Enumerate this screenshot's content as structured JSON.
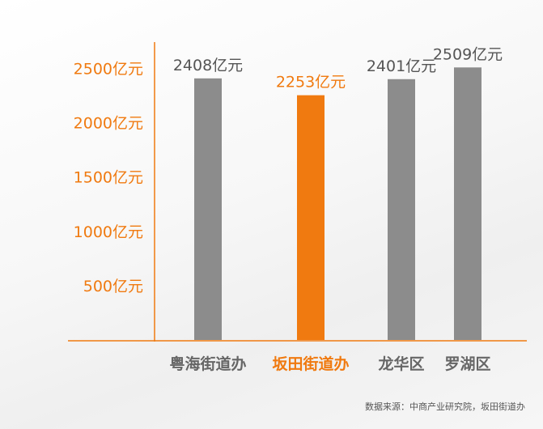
{
  "chart_data": {
    "type": "bar",
    "categories": [
      "粤海街道办",
      "坂田街道办",
      "龙华区",
      "罗湖区"
    ],
    "values": [
      2408,
      2253,
      2401,
      2509
    ],
    "data_labels": [
      "2408亿元",
      "2253亿元",
      "2401亿元",
      "2509亿元"
    ],
    "highlight_index": 1,
    "y_ticks": [
      500,
      1000,
      1500,
      2000,
      2500
    ],
    "y_tick_labels": [
      "500亿元",
      "1000亿元",
      "1500亿元",
      "2000亿元",
      "2500亿元"
    ],
    "ylim": [
      0,
      2800
    ],
    "title": "",
    "xlabel": "",
    "ylabel": "",
    "grid": false,
    "colors": {
      "bar": "#8c8c8c",
      "highlight": "#f07a10",
      "axis": "#f07a10",
      "tick_label": "#f07a10",
      "category_label": "#666666",
      "value_label": "#555555"
    }
  },
  "source_note": "数据来源：中商产业研究院，坂田街道办"
}
